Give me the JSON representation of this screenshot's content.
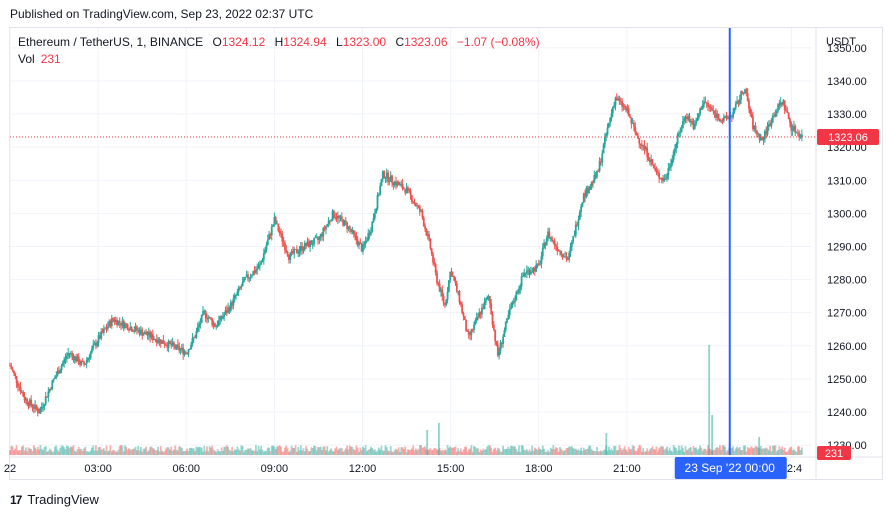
{
  "header": {
    "published": "Published on TradingView.com, Sep 23, 2022 02:37 UTC"
  },
  "legend": {
    "symbol": "Ethereum / TetherUS, 1, BINANCE",
    "o_label": "O",
    "o_value": "1324.12",
    "h_label": "H",
    "h_value": "1324.94",
    "l_label": "L",
    "l_value": "1323.00",
    "c_label": "C",
    "c_value": "1323.06",
    "change": "−1.07 (−0.08%)",
    "vol_label": "Vol",
    "vol_value": "231"
  },
  "colors": {
    "up": "#26a69a",
    "down": "#ef5350",
    "crosshair": "#2962ff",
    "price_label": "#f23645"
  },
  "chart_data": {
    "type": "candlestick",
    "title": "Ethereum / TetherUS, 1, BINANCE",
    "ylabel": "USDT",
    "ylim": [
      1227,
      1356
    ],
    "yticks": [
      "1350.00",
      "1340.00",
      "1330.00",
      "1320.00",
      "1310.00",
      "1300.00",
      "1290.00",
      "1280.00",
      "1270.00",
      "1260.00",
      "1250.00",
      "1240.00",
      "1230.00"
    ],
    "xticks": [
      "22",
      "03:00",
      "06:00",
      "09:00",
      "12:00",
      "15:00",
      "18:00",
      "21:00",
      "02:4"
    ],
    "xtick_hours": [
      0,
      3,
      6,
      9,
      12,
      15,
      18,
      21,
      26.6
    ],
    "x_range_hours": [
      0,
      27.3
    ],
    "last_price": "1323.06",
    "last_volume": "231",
    "crosshair_label": "23 Sep '22   00:00",
    "crosshair_hour": 24.5,
    "grid": true,
    "series": [
      {
        "name": "Price",
        "points": [
          [
            0,
            1254
          ],
          [
            0.5,
            1244
          ],
          [
            1,
            1240
          ],
          [
            1.5,
            1250
          ],
          [
            2,
            1258
          ],
          [
            2.5,
            1254
          ],
          [
            3,
            1262
          ],
          [
            3.5,
            1268
          ],
          [
            4,
            1266
          ],
          [
            4.5,
            1264
          ],
          [
            5,
            1262
          ],
          [
            5.5,
            1260
          ],
          [
            6,
            1258
          ],
          [
            6.3,
            1263
          ],
          [
            6.6,
            1270
          ],
          [
            7,
            1266
          ],
          [
            7.5,
            1272
          ],
          [
            8,
            1280
          ],
          [
            8.5,
            1284
          ],
          [
            9,
            1298
          ],
          [
            9.5,
            1287
          ],
          [
            10,
            1290
          ],
          [
            10.5,
            1292
          ],
          [
            11,
            1300
          ],
          [
            11.5,
            1296
          ],
          [
            12,
            1289
          ],
          [
            12.3,
            1296
          ],
          [
            12.7,
            1312
          ],
          [
            13,
            1310
          ],
          [
            13.5,
            1307
          ],
          [
            14,
            1300
          ],
          [
            14.3,
            1290
          ],
          [
            14.5,
            1281
          ],
          [
            14.8,
            1272
          ],
          [
            15,
            1283
          ],
          [
            15.3,
            1274
          ],
          [
            15.6,
            1262
          ],
          [
            16,
            1270
          ],
          [
            16.3,
            1275
          ],
          [
            16.6,
            1257
          ],
          [
            17,
            1270
          ],
          [
            17.5,
            1282
          ],
          [
            18,
            1284
          ],
          [
            18.3,
            1294
          ],
          [
            18.6,
            1290
          ],
          [
            19,
            1286
          ],
          [
            19.5,
            1305
          ],
          [
            20,
            1312
          ],
          [
            20.3,
            1324
          ],
          [
            20.6,
            1335
          ],
          [
            21,
            1331
          ],
          [
            21.3,
            1324
          ],
          [
            21.7,
            1318
          ],
          [
            22,
            1312
          ],
          [
            22.3,
            1310
          ],
          [
            22.7,
            1322
          ],
          [
            23,
            1330
          ],
          [
            23.3,
            1326
          ],
          [
            23.6,
            1334
          ],
          [
            24,
            1330
          ],
          [
            24.3,
            1328
          ],
          [
            24.6,
            1330
          ],
          [
            25,
            1338
          ],
          [
            25.3,
            1326
          ],
          [
            25.6,
            1322
          ],
          [
            26,
            1330
          ],
          [
            26.3,
            1334
          ],
          [
            26.6,
            1326
          ],
          [
            27,
            1323
          ]
        ]
      }
    ],
    "volume_spikes": [
      {
        "hour": 23.8,
        "value": 110
      },
      {
        "hour": 23.9,
        "value": 40
      },
      {
        "hour": 14.2,
        "value": 25
      },
      {
        "hour": 14.6,
        "value": 32
      },
      {
        "hour": 20.3,
        "value": 22
      },
      {
        "hour": 25.5,
        "value": 18
      }
    ]
  },
  "footer": {
    "brand": "TradingView"
  }
}
